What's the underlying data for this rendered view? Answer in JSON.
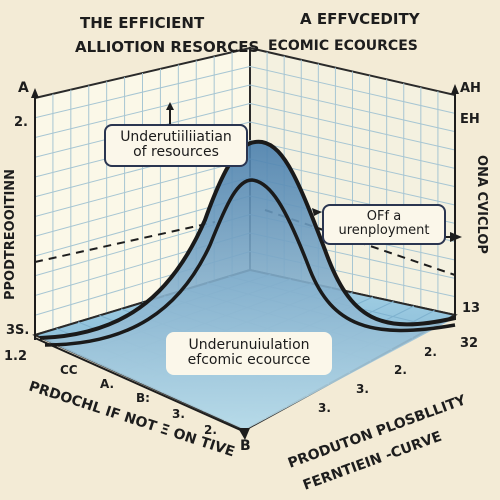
{
  "title_left": [
    "THE EFFICIENT",
    "ALLIOTION RESORCES"
  ],
  "title_right": [
    "A EFFVCEDITY",
    "ECOMIC ECOURCES"
  ],
  "left_axis_label": "PPODTREOOITINN",
  "right_axis_label": "ONA CVICLOP",
  "bottom_left_label": "PRDOCHL IF NOT Ξ ON TIVE",
  "bottom_right_label": [
    "PRODUTON PLOSBLLITY",
    "FERNTIEIN -CURVE"
  ],
  "callouts": {
    "top": [
      "Underutiiliiatian",
      "of resources"
    ],
    "right": [
      "OFf a",
      "urenployment"
    ],
    "bottom": [
      "Underunuiulation",
      "efcomic ecourcce"
    ]
  },
  "ticks": {
    "left_top": "A",
    "left_mid": "2.",
    "left_bottom": "3S.",
    "corner_left": "1.2",
    "right_top": "AH",
    "right_mid": "EH",
    "right_low": "13",
    "right_bottom": "32",
    "bottom_point": "B",
    "bottom_left": [
      "CC",
      "A.",
      "B:",
      "3.",
      "2."
    ],
    "bottom_right": [
      "2.",
      "2.",
      "3.",
      "3."
    ]
  },
  "colors": {
    "ink": "#1d1d1d",
    "curve_fill": "#5f93bd",
    "floor": "#8fc3dd",
    "wall": "#fbf8e8",
    "grid": "#a7c6d3"
  }
}
